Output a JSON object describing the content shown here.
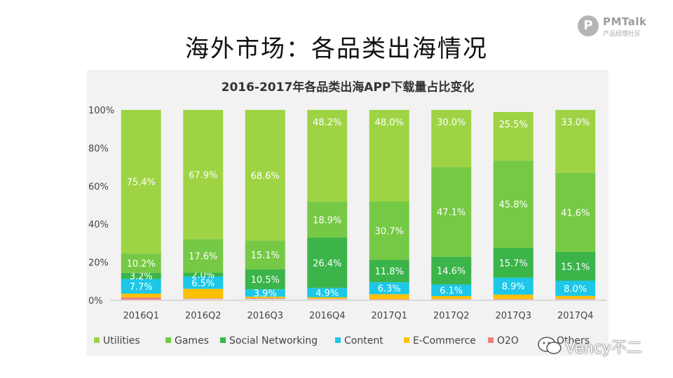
{
  "slide": {
    "title": "海外市场：各品类出海情况"
  },
  "logo": {
    "badge": "P",
    "name": "PMTalk",
    "sub": "产品经理社区"
  },
  "watermark": {
    "text": "Vency不二"
  },
  "chart_data": {
    "type": "bar",
    "stacked": true,
    "title": "2016-2017年各品类出海APP下载量占比变化",
    "xlabel": "",
    "ylabel": "",
    "ylim": [
      0,
      100
    ],
    "yticks": [
      "0%",
      "20%",
      "40%",
      "60%",
      "80%",
      "100%"
    ],
    "categories": [
      "2016Q1",
      "2016Q2",
      "2016Q3",
      "2016Q4",
      "2017Q1",
      "2017Q2",
      "2017Q3",
      "2017Q4"
    ],
    "legend_position": "bottom",
    "series": [
      {
        "name": "Others",
        "color": "#d9d9d9",
        "values": [
          0.3,
          0.7,
          0.8,
          0.6,
          0.3,
          0.5,
          0.4,
          0.5
        ]
      },
      {
        "name": "O2O",
        "color": "#f08080",
        "values": [
          1.2,
          0.3,
          0.3,
          0.2,
          0.3,
          0.2,
          0.3,
          0.3
        ]
      },
      {
        "name": "E-Commerce",
        "color": "#ffc000",
        "values": [
          2.0,
          5.0,
          0.8,
          0.8,
          2.6,
          1.5,
          2.3,
          1.5
        ]
      },
      {
        "name": "Content",
        "color": "#1cc7e8",
        "values": [
          7.7,
          6.5,
          3.9,
          4.9,
          6.3,
          6.1,
          8.9,
          8.0
        ]
      },
      {
        "name": "Social Networking",
        "color": "#3bb44a",
        "values": [
          3.2,
          2.0,
          10.5,
          26.4,
          11.8,
          14.6,
          15.7,
          15.1
        ]
      },
      {
        "name": "Games",
        "color": "#76c944",
        "values": [
          10.2,
          17.6,
          15.1,
          18.9,
          30.7,
          47.1,
          45.8,
          41.6
        ]
      },
      {
        "name": "Utilities",
        "color": "#9ed444",
        "values": [
          75.4,
          67.9,
          68.6,
          48.2,
          48.0,
          30.0,
          25.5,
          33.0
        ]
      }
    ],
    "data_labels": {
      "Utilities": [
        "75.4%",
        "67.9%",
        "68.6%",
        "48.2%",
        "48.0%",
        "30.0%",
        "25.5%",
        "33.0%"
      ],
      "Games": [
        "10.2%",
        "17.6%",
        "15.1%",
        "18.9%",
        "30.7%",
        "47.1%",
        "45.8%",
        "41.6%"
      ],
      "Social Networking": [
        "3.2%",
        "2.0%",
        "10.5%",
        "26.4%",
        "11.8%",
        "14.6%",
        "15.7%",
        "15.1%"
      ],
      "Content": [
        "7.7%",
        "6.5%",
        "3.9%",
        "4.9%",
        "6.3%",
        "6.1%",
        "8.9%",
        "8.0%"
      ]
    },
    "legend": [
      "Utilities",
      "Games",
      "Social Networking",
      "Content",
      "E-Commerce",
      "O2O",
      "Others"
    ]
  }
}
